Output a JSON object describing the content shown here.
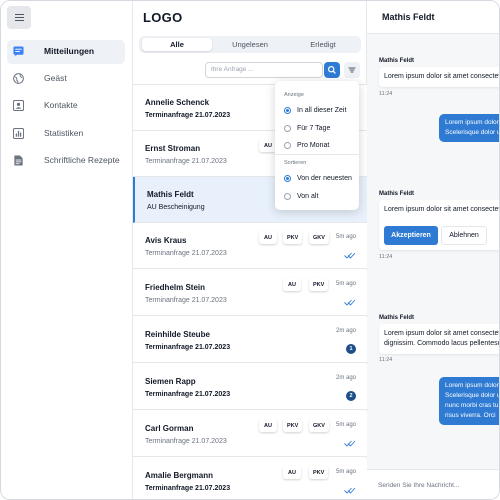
{
  "app": {
    "logo": "LOGO"
  },
  "sidebar": {
    "items": [
      {
        "label": "Mitteilungen",
        "icon": "message-icon",
        "active": true
      },
      {
        "label": "Geäst",
        "icon": "globe-icon",
        "active": false
      },
      {
        "label": "Kontakte",
        "icon": "contacts-icon",
        "active": false
      },
      {
        "label": "Statistiken",
        "icon": "chart-icon",
        "active": false
      },
      {
        "label": "Schriftliche Rezepte",
        "icon": "document-icon",
        "active": false
      }
    ]
  },
  "tabs": [
    {
      "label": "Alle",
      "active": true
    },
    {
      "label": "Ungelesen",
      "active": false
    },
    {
      "label": "Erledigt",
      "active": false
    }
  ],
  "search": {
    "placeholder": "Ihre Anfrage ..."
  },
  "filter_menu": {
    "display_heading": "Anzeige",
    "display_options": [
      {
        "label": "In all dieser Zeit",
        "selected": true
      },
      {
        "label": "Für 7 Tage",
        "selected": false
      },
      {
        "label": "Pro Monat",
        "selected": false
      }
    ],
    "sort_heading": "Sortieren",
    "sort_options": [
      {
        "label": "Von der neuesten",
        "selected": true
      },
      {
        "label": "Von alt",
        "selected": false
      }
    ]
  },
  "conversations": [
    {
      "name": "Annelie Schenck",
      "subject": "Terminanfrage 21.07.2023",
      "bold": true,
      "time": "",
      "badges": [],
      "status": ""
    },
    {
      "name": "Ernst Stroman",
      "subject": "Terminanfrage 21.07.2023",
      "bold": false,
      "time": "",
      "badges": [
        "AU"
      ],
      "status": ""
    },
    {
      "name": "Mathis Feldt",
      "subject": "AU Bescheinigung",
      "bold": false,
      "time": "",
      "badges": [],
      "status": "",
      "selected": true
    },
    {
      "name": "Avis Kraus",
      "subject": "Terminanfrage 21.07.2023",
      "bold": false,
      "time": "5m ago",
      "badges": [
        "AU",
        "PKV",
        "GKV"
      ],
      "status": "read"
    },
    {
      "name": "Friedhelm Stein",
      "subject": "Terminanfrage 21.07.2023",
      "bold": false,
      "time": "5m ago",
      "badges": [
        "AU",
        "PKV"
      ],
      "status": "read"
    },
    {
      "name": "Reinhilde Steube",
      "subject": "Terminanfrage 21.07.2023",
      "bold": true,
      "time": "2m ago",
      "badges": [],
      "status": "1"
    },
    {
      "name": "Siemen Rapp",
      "subject": "Terminanfrage 21.07.2023",
      "bold": true,
      "time": "2m ago",
      "badges": [],
      "status": "2"
    },
    {
      "name": "Carl Gorman",
      "subject": "Terminanfrage 21.07.2023",
      "bold": false,
      "time": "5m ago",
      "badges": [
        "AU",
        "PKV",
        "GKV"
      ],
      "status": "read"
    },
    {
      "name": "Amalie Bergmann",
      "subject": "Terminanfrage 21.07.2023",
      "bold": true,
      "time": "5m ago",
      "badges": [
        "AU",
        "PKV"
      ],
      "status": "read"
    }
  ],
  "chat": {
    "title": "Mathis Feldt",
    "messages": [
      {
        "sender": "Mathis Feldt",
        "text": "Lorem ipsum dolor sit amet consectetur",
        "time": "11:24"
      },
      {
        "outgoing": true,
        "lines": [
          "Lorem ipsum dolor sit",
          "Scelerisque dolor u"
        ]
      },
      {
        "sender": "Mathis Feldt",
        "text": "Lorem ipsum dolor sit amet consectetur",
        "time": "11:24"
      },
      {
        "sender": "Mathis Feldt",
        "lines": [
          "Lorem ipsum dolor sit amet consectetur",
          "dignissim. Commodo lacus pellentesque"
        ],
        "time": "11:24"
      },
      {
        "outgoing": true,
        "lines": [
          "Lorem ipsum dolor sit",
          "Scelerisque dolor u",
          "nunc morbi cras tu",
          "risus viverra. Orci"
        ]
      }
    ],
    "accept_label": "Akzeptieren",
    "decline_label": "Ablehnen",
    "input_placeholder": "Seriden Sie Ihre Nachricht..."
  },
  "colors": {
    "accent": "#2f7bd3",
    "selected_row": "#e8f1fb",
    "count_badge": "#1e4f8a"
  }
}
